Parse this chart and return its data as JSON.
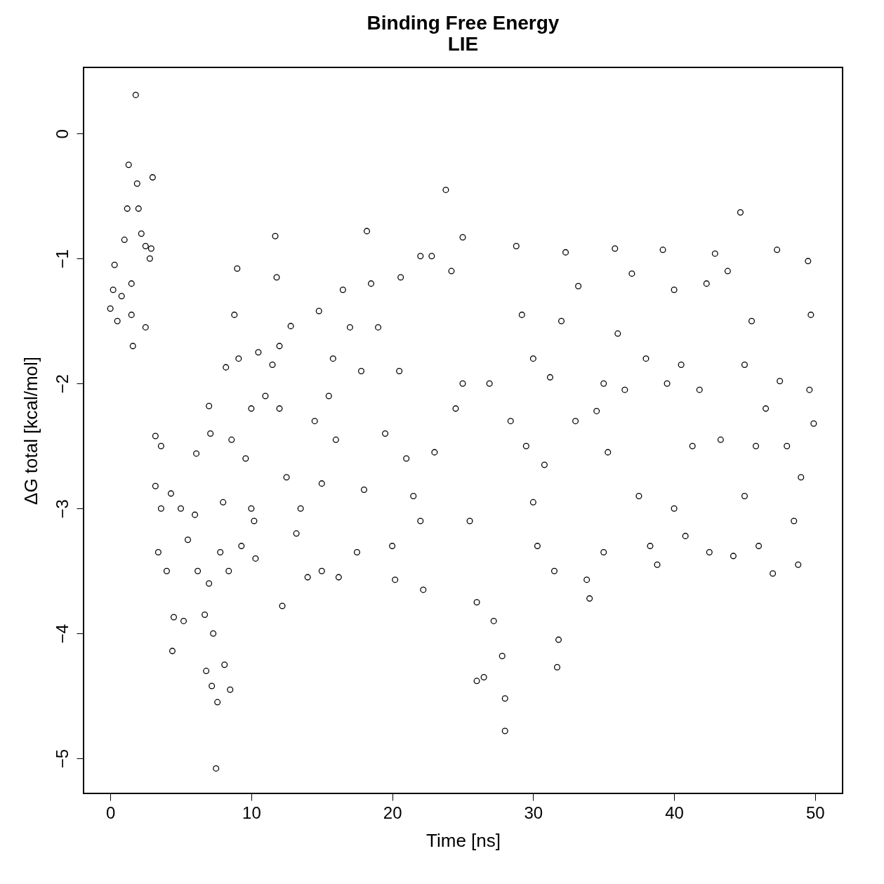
{
  "chart_data": {
    "type": "scatter",
    "title": "Binding Free Energy\nLIE",
    "xlabel": "Time [ns]",
    "ylabel": "ΔG total [kcal/mol]",
    "xlim": [
      -1.9,
      51.95
    ],
    "ylim": [
      -5.28,
      0.53
    ],
    "xticks": [
      0,
      10,
      20,
      30,
      40,
      50
    ],
    "yticks": [
      -5,
      -4,
      -3,
      -2,
      -1,
      0
    ],
    "grid": false,
    "marker": "circle",
    "series": [
      {
        "color": "#000000",
        "x": [
          1.8,
          1.3,
          3.0,
          1.9,
          2.0,
          1.2,
          1.0,
          2.5,
          2.8,
          0.3,
          0,
          0.5,
          1.6,
          2.5,
          1.5,
          0.8,
          2.2,
          1.5,
          0.2,
          2.9,
          3.2,
          3.6,
          3.2,
          3.6,
          4.3,
          3.4,
          4.0,
          4.4,
          4.5,
          5.0,
          5.5,
          5.2,
          6.0,
          6.2,
          6.1,
          7.0,
          7.1,
          7.0,
          6.7,
          6.8,
          7.3,
          7.6,
          7.5,
          7.2,
          8.1,
          8.5,
          7.8,
          8.0,
          8.6,
          8.2,
          8.8,
          9.0,
          9.1,
          9.3,
          8.4,
          9.6,
          10,
          10.2,
          10.3,
          10.5,
          11.0,
          11.5,
          11.7,
          11.8,
          12.0,
          12.2,
          12.5,
          12.8,
          13.2,
          13.5,
          14.0,
          14.5,
          14.8,
          15.0,
          15.5,
          15.8,
          16.0,
          16.2,
          16.5,
          17.0,
          17.5,
          17.8,
          18.2,
          18.0,
          18.5,
          19.0,
          19.5,
          20.0,
          20.2,
          20.6,
          21.0,
          21.5,
          22.0,
          22.2,
          22.8,
          23.0,
          23.8,
          24.2,
          24.5,
          25.0,
          25.5,
          26.0,
          26.5,
          26.0,
          26.9,
          27.2,
          27.8,
          28.0,
          28.0,
          28.4,
          28.8,
          29.2,
          29.5,
          30,
          30.3,
          30.8,
          31.2,
          31.5,
          31.7,
          31.8,
          32.0,
          32.3,
          33.0,
          33.2,
          33.8,
          34,
          34.5,
          35.0,
          35.3,
          35.8,
          36.0,
          36.5,
          37.0,
          37.5,
          38.0,
          38.3,
          38.8,
          39.2,
          39.5,
          40,
          40.5,
          40.8,
          41.3,
          41.8,
          42.3,
          42.5,
          42.9,
          43.3,
          43.8,
          44.2,
          44.7,
          45.0,
          45.5,
          45.8,
          46.0,
          46.5,
          47.0,
          47.3,
          47.5,
          48.0,
          48.5,
          48.8,
          49.0,
          49.5,
          49.6,
          49.9,
          49.7,
          40.0,
          20.5,
          15.0,
          25,
          35,
          45,
          10,
          30,
          12,
          22
        ],
        "values": [
          0.31,
          -0.25,
          -0.35,
          -0.4,
          -0.6,
          -0.6,
          -0.85,
          -0.9,
          -1.0,
          -1.05,
          -1.4,
          -1.5,
          -1.7,
          -1.55,
          -1.2,
          -1.3,
          -0.8,
          -1.45,
          -1.25,
          -0.92,
          -2.42,
          -2.5,
          -2.82,
          -3.0,
          -2.88,
          -3.35,
          -3.5,
          -4.14,
          -3.87,
          -3.0,
          -3.25,
          -3.9,
          -3.05,
          -3.5,
          -2.56,
          -2.18,
          -2.4,
          -3.6,
          -3.85,
          -4.3,
          -4.0,
          -4.55,
          -5.08,
          -4.42,
          -4.25,
          -4.45,
          -3.35,
          -2.95,
          -2.45,
          -1.87,
          -1.45,
          -1.08,
          -1.8,
          -3.3,
          -3.5,
          -2.6,
          -2.2,
          -3.1,
          -3.4,
          -1.75,
          -2.1,
          -1.85,
          -0.82,
          -1.15,
          -2.2,
          -3.78,
          -2.75,
          -1.54,
          -3.2,
          -3.0,
          -3.55,
          -2.3,
          -1.42,
          -3.5,
          -2.1,
          -1.8,
          -2.45,
          -3.55,
          -1.25,
          -1.55,
          -3.35,
          -1.9,
          -0.78,
          -2.85,
          -1.2,
          -1.55,
          -2.4,
          -3.3,
          -3.57,
          -1.15,
          -2.6,
          -2.9,
          -0.98,
          -3.65,
          -0.98,
          -2.55,
          -0.45,
          -1.1,
          -2.2,
          -0.83,
          -3.1,
          -4.38,
          -4.35,
          -3.75,
          -2.0,
          -3.9,
          -4.18,
          -4.78,
          -4.52,
          -2.3,
          -0.9,
          -1.45,
          -2.5,
          -2.95,
          -3.3,
          -2.65,
          -1.95,
          -3.5,
          -4.27,
          -4.05,
          -1.5,
          -0.95,
          -2.3,
          -1.22,
          -3.57,
          -3.72,
          -2.22,
          -3.35,
          -2.55,
          -0.92,
          -1.6,
          -2.05,
          -1.12,
          -2.9,
          -1.8,
          -3.3,
          -3.45,
          -0.93,
          -2.0,
          -1.25,
          -1.85,
          -3.22,
          -2.5,
          -2.05,
          -1.2,
          -3.35,
          -0.96,
          -2.45,
          -1.1,
          -3.38,
          -0.63,
          -1.85,
          -1.5,
          -2.5,
          -3.3,
          -2.2,
          -3.52,
          -0.93,
          -1.98,
          -2.5,
          -3.1,
          -3.45,
          -2.75,
          -1.02,
          -2.05,
          -2.32,
          -1.45,
          -3.0,
          -1.9,
          -2.8,
          -2.0,
          -2.0,
          -2.9,
          -3.0,
          -1.8,
          -1.7,
          -3.1
        ]
      }
    ]
  }
}
